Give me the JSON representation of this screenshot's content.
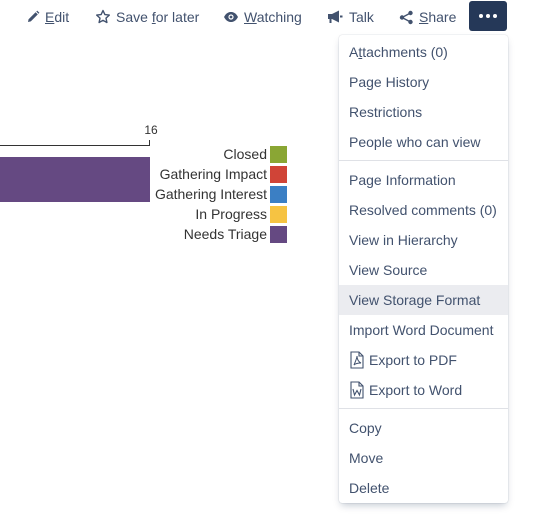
{
  "toolbar": {
    "edit": {
      "prefix": "",
      "underlined": "E",
      "suffix": "dit"
    },
    "save": {
      "prefix": "Save ",
      "underlined": "f",
      "suffix": "or later"
    },
    "watching": {
      "prefix": "",
      "underlined": "W",
      "suffix": "atching"
    },
    "talk": {
      "label": "Talk"
    },
    "share": {
      "prefix": "",
      "underlined": "S",
      "suffix": "hare"
    },
    "more_icon": "ellipsis-icon"
  },
  "chart_data": {
    "type": "bar",
    "orientation": "horizontal",
    "axis_tick_label": "16",
    "xlim": [
      0,
      16
    ],
    "values": [
      16
    ],
    "bar_color": "#654982",
    "legend": [
      {
        "label": "Closed",
        "color": "#8aa634"
      },
      {
        "label": "Gathering Impact",
        "color": "#d04437"
      },
      {
        "label": "Gathering Interest",
        "color": "#3b7fc4"
      },
      {
        "label": "In Progress",
        "color": "#f6c342"
      },
      {
        "label": "Needs Triage",
        "color": "#654982"
      }
    ]
  },
  "menu": {
    "attachments": {
      "prefix": "A",
      "underlined": "t",
      "suffix": "tachments (0)"
    },
    "page_history": "Page History",
    "restrictions": "Restrictions",
    "people_view": "People who can view",
    "page_information": "Page Information",
    "resolved_comments": "Resolved comments (0)",
    "view_hierarchy": "View in Hierarchy",
    "view_source": "View Source",
    "view_storage": "View Storage Format",
    "import_word": "Import Word Document",
    "export_pdf": "Export to PDF",
    "export_word": "Export to Word",
    "copy": "Copy",
    "move": "Move",
    "delete": "Delete"
  },
  "colors": {
    "toolbar_text": "#42526e",
    "more_button_bg": "#253858",
    "highlight_bg": "#ebecf0"
  }
}
